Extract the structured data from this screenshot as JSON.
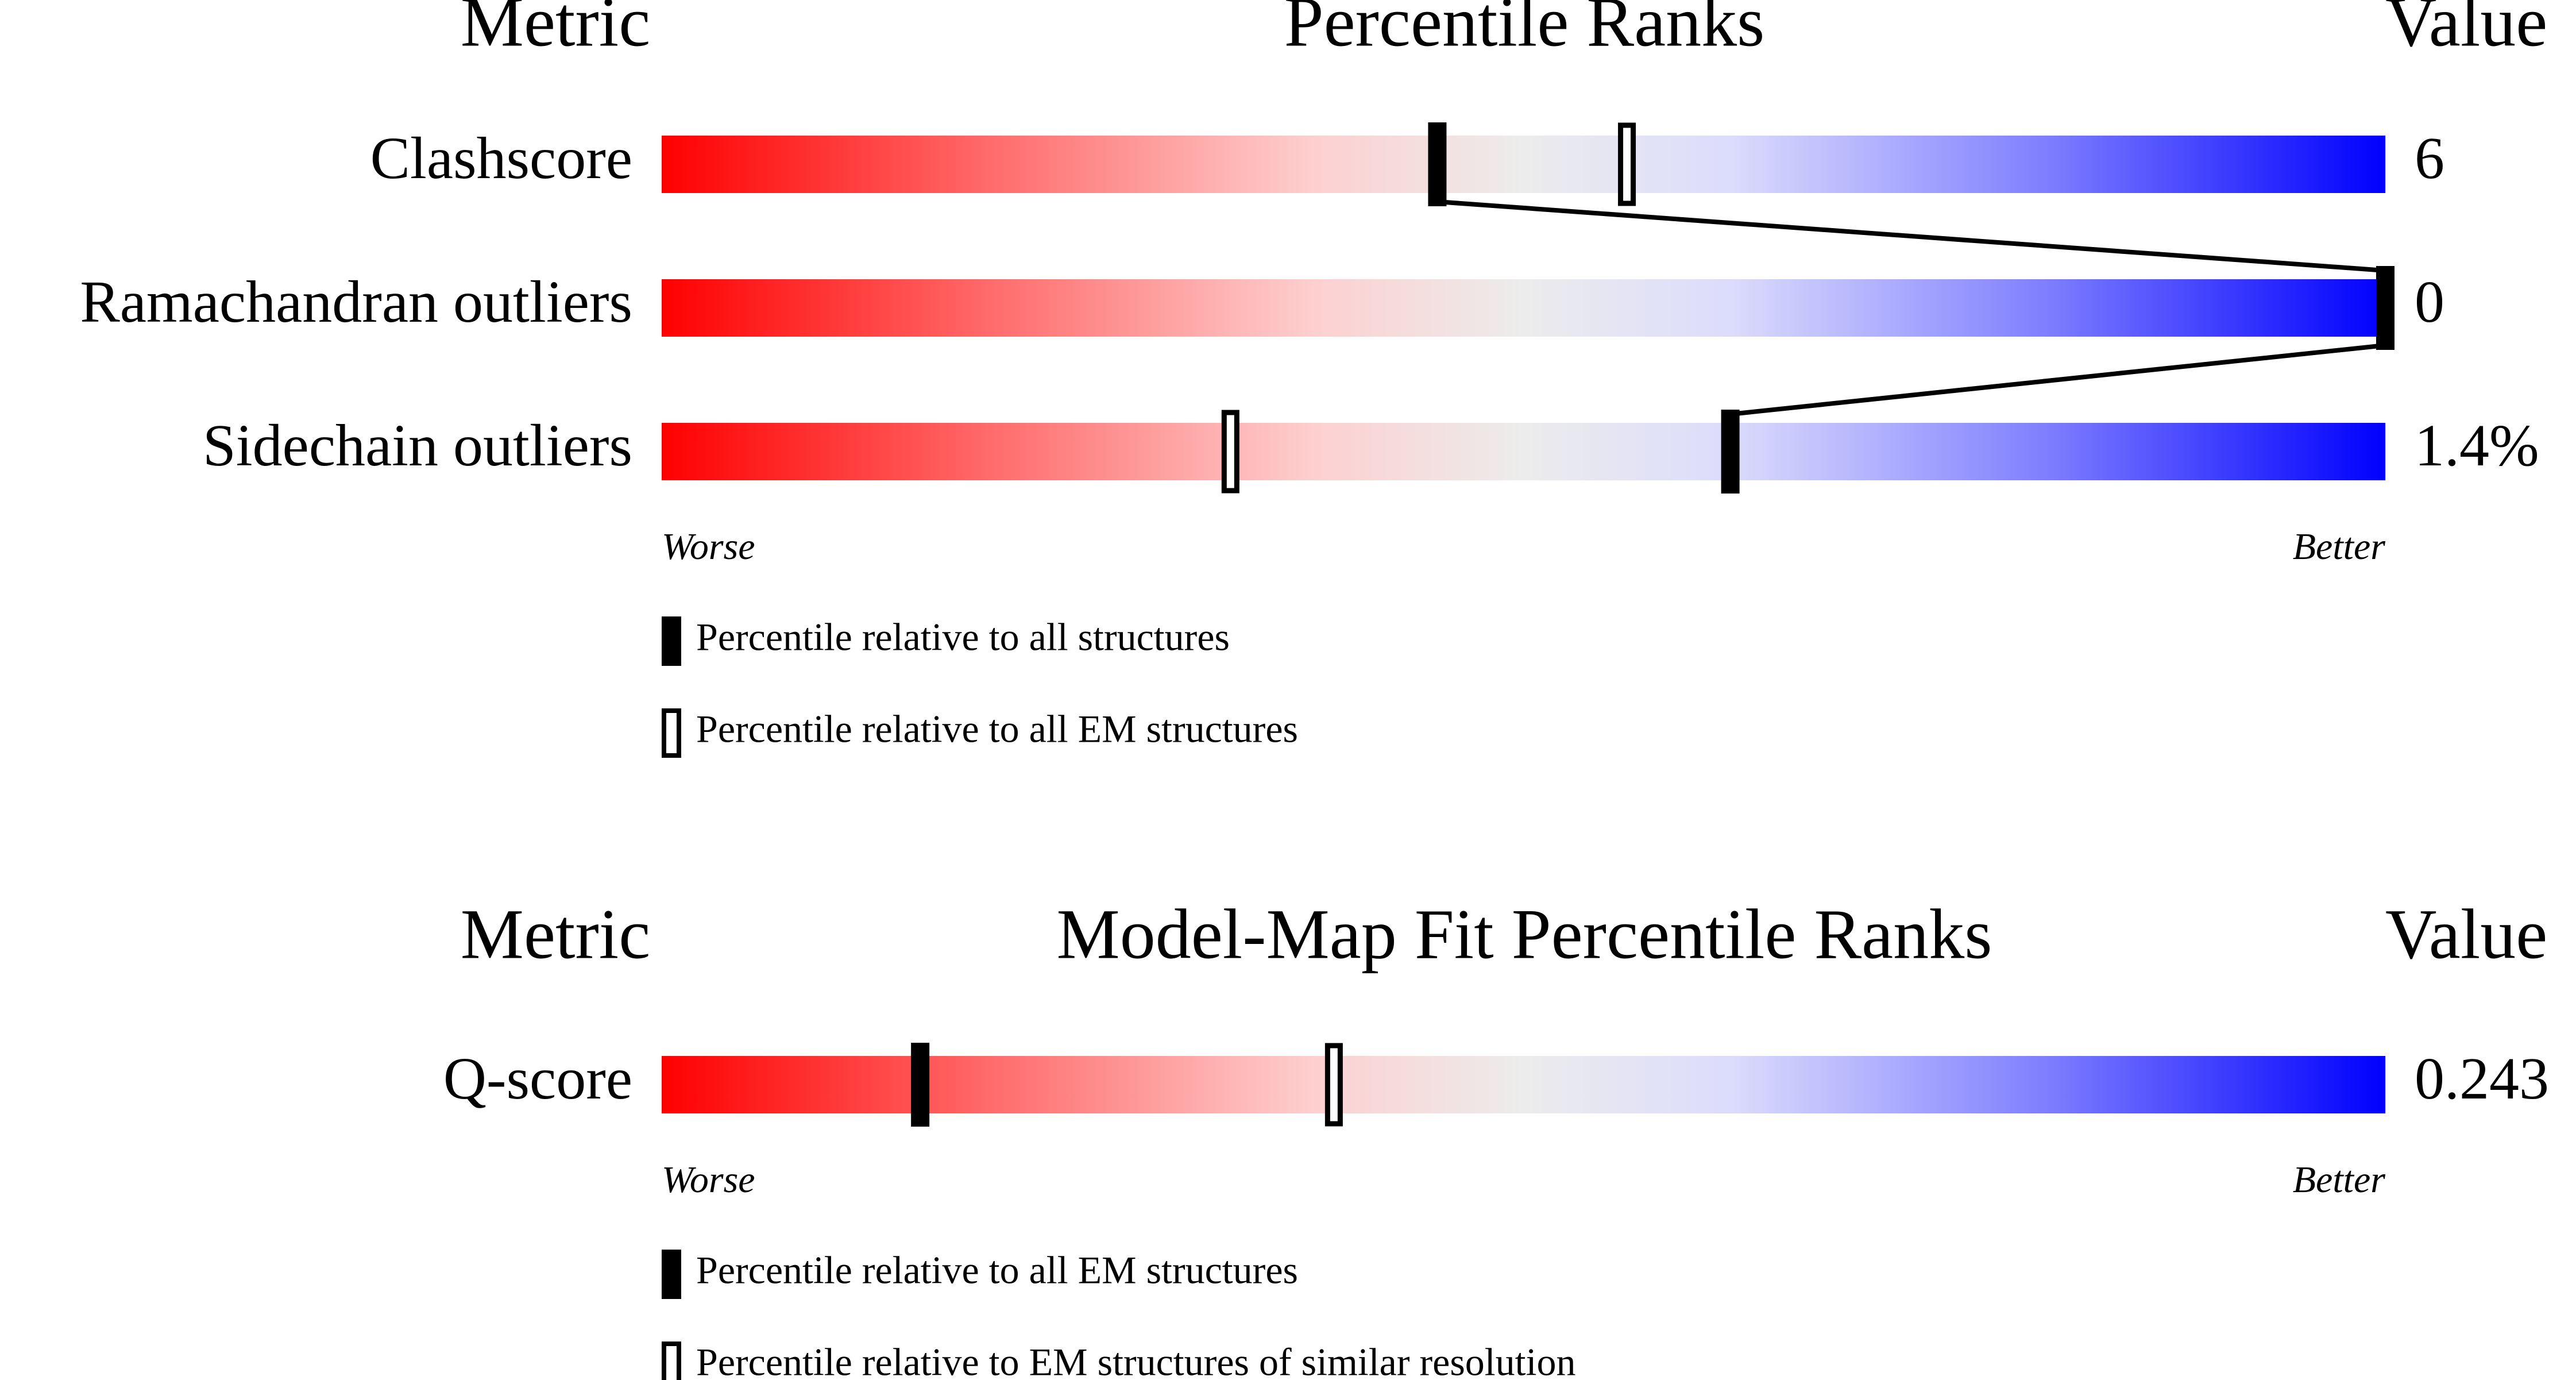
{
  "chart_data": [
    {
      "type": "percentile",
      "title": "Percentile Ranks",
      "metric_header": "Metric",
      "value_header": "Value",
      "categories": [
        "Clashscore",
        "Ramachandran outliers",
        "Sidechain outliers"
      ],
      "metric_values": [
        "6",
        "0",
        "1.4%"
      ],
      "series": [
        {
          "name": "Percentile relative to all structures",
          "style": "filled",
          "color": "#000000",
          "values": [
            45,
            100,
            62
          ]
        },
        {
          "name": "Percentile relative to all EM structures",
          "style": "open",
          "color": "#000000",
          "values": [
            56,
            100,
            33
          ]
        }
      ],
      "xlim": [
        0,
        100
      ],
      "worse_label": "Worse",
      "better_label": "Better",
      "connect_filled": true
    },
    {
      "type": "percentile",
      "title": "Model-Map Fit Percentile Ranks",
      "metric_header": "Metric",
      "value_header": "Value",
      "categories": [
        "Q-score"
      ],
      "metric_values": [
        "0.243"
      ],
      "series": [
        {
          "name": "Percentile relative to all EM structures",
          "style": "filled",
          "color": "#000000",
          "values": [
            15
          ]
        },
        {
          "name": "Percentile relative to EM structures of similar resolution",
          "style": "open",
          "color": "#000000",
          "values": [
            39
          ]
        }
      ],
      "xlim": [
        0,
        100
      ],
      "worse_label": "Worse",
      "better_label": "Better",
      "connect_filled": true
    }
  ]
}
